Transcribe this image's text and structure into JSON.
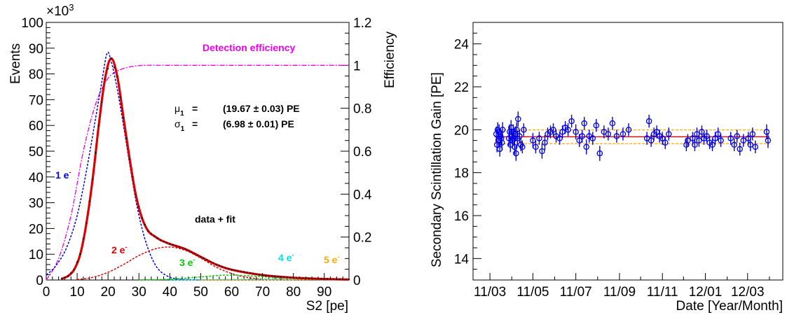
{
  "chart_data": [
    {
      "type": "line",
      "xlabel": "S2 [pe]",
      "ylabel": "Events",
      "y_multiplier": "×10",
      "y_multiplier_exp": "3",
      "y2label": "Efficiency",
      "xlim": [
        0,
        98
      ],
      "ylim": [
        0,
        100
      ],
      "y2lim": [
        0,
        1.2
      ],
      "x_ticks": [
        0,
        10,
        20,
        30,
        40,
        50,
        60,
        70,
        80,
        90
      ],
      "y_ticks": [
        0,
        10,
        20,
        30,
        40,
        50,
        60,
        70,
        80,
        90,
        100
      ],
      "y2_ticks": [
        0,
        0.2,
        0.4,
        0.6,
        0.8,
        1,
        1.2
      ],
      "annotations": {
        "efficiency_label": "Detection efficiency",
        "mu_symbol": "μ",
        "mu_sub": "1",
        "mu_eq": "=",
        "mu_val": "(19.67 ± 0.03) PE",
        "sigma_symbol": "σ",
        "sigma_sub": "1",
        "sigma_eq": "=",
        "sigma_val": "(6.98 ± 0.01) PE",
        "data_fit": "data + fit",
        "pe1": "1 e",
        "pe2": "2 e",
        "pe3": "3 e",
        "pe4": "4 e",
        "pe5": "5 e",
        "superscript": "-"
      },
      "series": [
        {
          "name": "1 e",
          "x": [
            0,
            2,
            4,
            6,
            8,
            10,
            12,
            14,
            16,
            18,
            19.67,
            21,
            23,
            25,
            27,
            29,
            31,
            33,
            35,
            37,
            40,
            43,
            46,
            50
          ],
          "y": [
            2,
            4,
            7,
            11,
            17,
            25,
            36,
            49,
            63,
            77,
            88,
            85,
            74,
            60,
            45,
            31,
            20,
            12,
            6.5,
            3.3,
            1.1,
            0.3,
            0.1,
            0
          ]
        },
        {
          "name": "2 e",
          "x": [
            10,
            15,
            20,
            25,
            30,
            35,
            40,
            45,
            50,
            55,
            60,
            65,
            70
          ],
          "y": [
            0.2,
            1,
            3,
            6,
            9.5,
            12,
            12.8,
            11.5,
            8.5,
            5,
            2.5,
            1,
            0.3
          ]
        },
        {
          "name": "3 e",
          "x": [
            30,
            40,
            50,
            55,
            60,
            70,
            80,
            90
          ],
          "y": [
            0,
            0.3,
            1.2,
            1.7,
            1.9,
            1.3,
            0.5,
            0.1
          ]
        },
        {
          "name": "4 e",
          "x": [
            40,
            60,
            70,
            80,
            90,
            98
          ],
          "y": [
            0,
            0.2,
            0.4,
            0.5,
            0.35,
            0.2
          ]
        },
        {
          "name": "5 e",
          "x": [
            50,
            70,
            90,
            98
          ],
          "y": [
            0,
            0.05,
            0.2,
            0.25
          ]
        },
        {
          "name": "data + fit",
          "x": [
            5,
            7,
            9,
            11,
            13,
            15,
            17,
            19,
            21,
            23,
            25,
            27,
            29,
            31,
            33,
            35,
            37,
            40,
            45,
            50,
            55,
            60,
            70,
            80,
            90,
            98
          ],
          "y": [
            0.5,
            1.5,
            4,
            10,
            22,
            39,
            60,
            78,
            86,
            79,
            63,
            47,
            33,
            24,
            19,
            17,
            15.5,
            14,
            12,
            9,
            6,
            4,
            1.9,
            0.9,
            0.4,
            0.2
          ]
        }
      ],
      "efficiency_curve": {
        "x": [
          0,
          4,
          8,
          12,
          16,
          20,
          24,
          28,
          32,
          40,
          60,
          80,
          98
        ],
        "y": [
          0,
          0.1,
          0.3,
          0.6,
          0.82,
          0.94,
          0.98,
          0.995,
          1,
          1,
          1,
          1,
          1
        ]
      }
    },
    {
      "type": "scatter",
      "xlabel": "Date [Year/Month]",
      "ylabel": "Secondary Scintillation Gain [PE]",
      "ylim": [
        13,
        25
      ],
      "y_ticks": [
        14,
        16,
        18,
        20,
        22,
        24
      ],
      "x_tick_labels": [
        "11/03",
        "11/05",
        "11/07",
        "11/09",
        "11/11",
        "12/01",
        "12/03"
      ],
      "x_tick_dates": [
        "2011-03-01",
        "2011-05-01",
        "2011-07-01",
        "2011-09-01",
        "2011-11-01",
        "2012-01-01",
        "2012-03-01"
      ],
      "xlim": [
        "2011-02-05",
        "2012-04-20"
      ],
      "mean_line": 19.67,
      "band": [
        19.35,
        19.99
      ],
      "points": {
        "dates": [
          "2011-03-10",
          "2011-03-11",
          "2011-03-12",
          "2011-03-13",
          "2011-03-14",
          "2011-03-15",
          "2011-03-16",
          "2011-03-17",
          "2011-03-18",
          "2011-03-19",
          "2011-03-28",
          "2011-03-29",
          "2011-03-30",
          "2011-03-31",
          "2011-04-01",
          "2011-04-02",
          "2011-04-03",
          "2011-04-04",
          "2011-04-05",
          "2011-04-06",
          "2011-04-07",
          "2011-04-08",
          "2011-04-09",
          "2011-04-10",
          "2011-04-12",
          "2011-04-14",
          "2011-04-16",
          "2011-04-18",
          "2011-05-01",
          "2011-05-05",
          "2011-05-10",
          "2011-05-14",
          "2011-05-18",
          "2011-05-22",
          "2011-05-26",
          "2011-05-30",
          "2011-06-03",
          "2011-06-08",
          "2011-06-12",
          "2011-06-16",
          "2011-06-20",
          "2011-06-25",
          "2011-07-01",
          "2011-07-06",
          "2011-07-10",
          "2011-07-13",
          "2011-07-16",
          "2011-07-20",
          "2011-07-25",
          "2011-07-30",
          "2011-08-04",
          "2011-08-10",
          "2011-08-16",
          "2011-08-22",
          "2011-08-28",
          "2011-09-06",
          "2011-09-14",
          "2011-10-10",
          "2011-10-13",
          "2011-10-16",
          "2011-10-20",
          "2011-10-24",
          "2011-10-28",
          "2011-11-01",
          "2011-11-05",
          "2011-11-10",
          "2011-12-05",
          "2011-12-07",
          "2011-12-14",
          "2011-12-17",
          "2011-12-20",
          "2011-12-23",
          "2011-12-27",
          "2011-12-30",
          "2012-01-03",
          "2012-01-07",
          "2012-01-11",
          "2012-01-15",
          "2012-01-19",
          "2012-01-23",
          "2012-02-06",
          "2012-02-11",
          "2012-02-15",
          "2012-02-19",
          "2012-02-24",
          "2012-03-02",
          "2012-03-05",
          "2012-03-08",
          "2012-03-12",
          "2012-03-28",
          "2012-03-30"
        ],
        "values": [
          19.8,
          19.3,
          20.0,
          19.5,
          19.9,
          19.1,
          19.7,
          19.6,
          19.4,
          20.0,
          19.6,
          19.9,
          19.3,
          20.1,
          19.7,
          19.5,
          19.9,
          19.6,
          19.2,
          19.8,
          18.9,
          20.0,
          19.6,
          20.5,
          19.7,
          19.3,
          19.2,
          20.0,
          19.5,
          19.2,
          19.6,
          19.0,
          19.4,
          19.8,
          19.9,
          20.0,
          19.7,
          19.6,
          19.9,
          20.1,
          20.0,
          20.4,
          19.9,
          19.5,
          19.7,
          20.3,
          19.2,
          19.7,
          19.6,
          20.2,
          18.9,
          19.9,
          19.8,
          20.3,
          19.7,
          19.8,
          20.0,
          19.6,
          20.4,
          19.5,
          19.8,
          19.9,
          19.7,
          19.6,
          19.4,
          19.8,
          19.3,
          19.5,
          19.6,
          19.3,
          19.8,
          19.5,
          19.9,
          19.6,
          19.7,
          19.4,
          19.3,
          19.6,
          19.8,
          19.5,
          19.6,
          19.3,
          19.7,
          19.1,
          19.5,
          19.6,
          19.3,
          19.8,
          19.2,
          19.9,
          19.5
        ],
        "error": [
          0.35,
          0.35,
          0.35,
          0.35,
          0.35,
          0.35,
          0.35,
          0.35,
          0.35,
          0.35,
          0.35,
          0.35,
          0.35,
          0.35,
          0.35,
          0.35,
          0.35,
          0.35,
          0.35,
          0.35,
          0.35,
          0.35,
          0.35,
          0.35,
          0.3,
          0.3,
          0.3,
          0.3,
          0.35,
          0.3,
          0.3,
          0.35,
          0.35,
          0.3,
          0.3,
          0.3,
          0.3,
          0.3,
          0.3,
          0.3,
          0.3,
          0.3,
          0.35,
          0.3,
          0.3,
          0.3,
          0.35,
          0.3,
          0.3,
          0.3,
          0.35,
          0.3,
          0.3,
          0.3,
          0.3,
          0.3,
          0.3,
          0.3,
          0.3,
          0.3,
          0.3,
          0.3,
          0.3,
          0.3,
          0.3,
          0.3,
          0.3,
          0.3,
          0.3,
          0.3,
          0.3,
          0.3,
          0.3,
          0.3,
          0.3,
          0.3,
          0.3,
          0.3,
          0.3,
          0.3,
          0.3,
          0.3,
          0.3,
          0.3,
          0.3,
          0.3,
          0.3,
          0.3,
          0.3,
          0.35,
          0.35
        ]
      }
    }
  ],
  "colors": {
    "pe1": "#0000dd",
    "pe2": "#dd0000",
    "pe3": "#00cc00",
    "pe4": "#00e0e0",
    "pe5": "#ffaa00",
    "fit": "#dd0000",
    "efficiency": "#ee00ee",
    "points": "#0000ee",
    "band": "#ffaa00",
    "mean": "#dd0000"
  }
}
